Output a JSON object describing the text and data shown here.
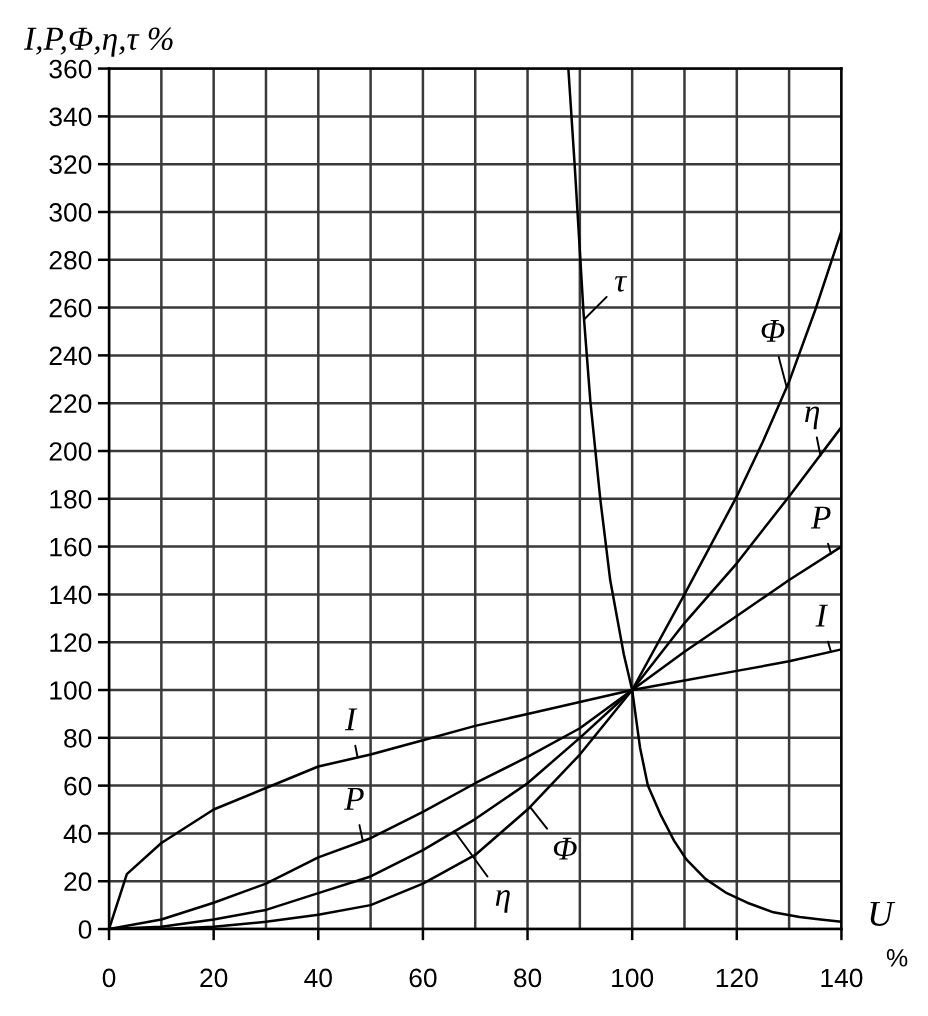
{
  "chart_data": {
    "type": "line",
    "xlabel": "U",
    "ylabel": "I,P,Φ,η,τ %",
    "xlim": [
      0,
      140
    ],
    "ylim": [
      0,
      360
    ],
    "xticks": [
      0,
      {
        "value": 10,
        "label": null
      },
      20,
      {
        "value": 30,
        "label": null
      },
      40,
      {
        "value": 50,
        "label": null
      },
      60,
      {
        "value": 70,
        "label": null
      },
      80,
      {
        "value": 90,
        "label": null
      },
      100,
      {
        "value": 110,
        "label": null
      },
      120,
      {
        "value": 130,
        "label": null
      },
      140
    ],
    "yticks": [
      0,
      20,
      40,
      60,
      80,
      100,
      120,
      140,
      160,
      180,
      200,
      220,
      240,
      260,
      280,
      300,
      320,
      340,
      360
    ],
    "grid": true,
    "series": [
      {
        "color": "#000000",
        "x": [
          0,
          3.4,
          10,
          15,
          20,
          30,
          40,
          50,
          60,
          70,
          80,
          90,
          100,
          105,
          110,
          120,
          130,
          140
        ],
        "values": [
          0,
          23,
          36,
          43,
          50,
          59,
          68,
          73,
          79,
          85,
          90,
          95,
          100,
          102,
          104,
          108,
          112,
          117
        ]
      },
      {
        "color": "#000000",
        "x": [
          0,
          10,
          20,
          30,
          40,
          50,
          60,
          70,
          80,
          90,
          100,
          110,
          120,
          130,
          140
        ],
        "values": [
          0,
          4,
          11,
          19,
          30,
          38,
          49,
          61,
          72,
          84,
          100,
          116,
          131,
          146,
          160
        ]
      },
      {
        "color": "#000000",
        "x": [
          0,
          10,
          20,
          30,
          40,
          50,
          60,
          70,
          80,
          90,
          100,
          110,
          120,
          125,
          130,
          135,
          140
        ],
        "values": [
          0,
          0,
          1,
          3,
          6,
          10,
          19,
          31,
          50,
          73,
          100,
          140,
          181,
          204,
          229,
          259,
          292
        ]
      },
      {
        "color": "#000000",
        "x": [
          0,
          10,
          20,
          30,
          40,
          50,
          60,
          70,
          80,
          90,
          100,
          110,
          120,
          130,
          140
        ],
        "values": [
          0,
          1,
          4,
          8,
          15,
          22,
          33,
          46,
          61,
          80,
          100,
          128,
          153,
          181,
          210
        ]
      },
      {
        "color": "#000000",
        "x": [
          87.8,
          89,
          90.1,
          90.7,
          92,
          93.9,
          95.8,
          98.4,
          100,
          101.5,
          103,
          105.4,
          108,
          110.4,
          114,
          118.1,
          122,
          127,
          132,
          136,
          140
        ],
        "values": [
          360,
          320,
          280,
          258,
          221,
          180,
          146,
          115,
          100,
          76,
          60,
          48,
          37,
          29,
          21,
          15,
          11,
          7,
          5,
          4,
          3
        ]
      }
    ],
    "annotations": [
      {
        "text": "τ",
        "x": 90.8,
        "y": 255
      },
      {
        "text": "Φ",
        "x": 129.5,
        "y": 227
      },
      {
        "text": "η",
        "x": 136,
        "y": 198
      },
      {
        "text": "P",
        "x": 138,
        "y": 157
      },
      {
        "text": "I",
        "x": 138,
        "y": 116
      },
      {
        "text": "I",
        "x": 47.5,
        "y": 72
      },
      {
        "text": "P",
        "x": 48.5,
        "y": 37
      },
      {
        "text": "Φ",
        "x": 80.5,
        "y": 51
      },
      {
        "text": "η",
        "x": 66,
        "y": 41
      },
      "%"
    ]
  }
}
